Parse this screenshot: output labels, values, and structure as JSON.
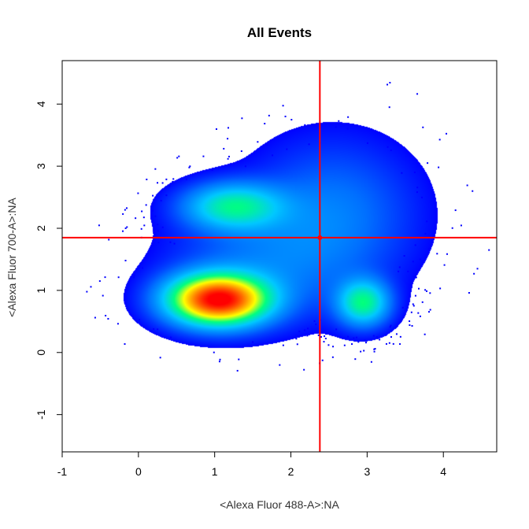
{
  "chart_data": {
    "type": "scatter",
    "subtype": "density-scatter",
    "title": "All Events",
    "xlabel": "<Alexa Fluor 488-A>:NA",
    "ylabel": "<Alexa Fluor 700-A>:NA",
    "xlim": [
      -1.0,
      4.7
    ],
    "ylim": [
      -1.6,
      4.7
    ],
    "x_ticks": [
      -1,
      0,
      1,
      2,
      3,
      4
    ],
    "y_ticks": [
      -1,
      0,
      1,
      2,
      3,
      4
    ],
    "grid": false,
    "legend": "none",
    "gate": {
      "x": 2.38,
      "y": 1.85,
      "color": "#ff0000"
    },
    "populations": [
      {
        "x": 1.05,
        "y": 0.85,
        "sx": 0.42,
        "sy": 0.26,
        "weight": 1.0
      },
      {
        "x": 1.25,
        "y": 2.35,
        "sx": 0.42,
        "sy": 0.24,
        "weight": 0.35
      },
      {
        "x": 2.95,
        "y": 0.8,
        "sx": 0.22,
        "sy": 0.24,
        "weight": 0.38
      },
      {
        "x": 2.55,
        "y": 2.25,
        "sx": 0.7,
        "sy": 0.75,
        "weight": 0.12
      },
      {
        "x": 1.6,
        "y": 1.4,
        "sx": 0.8,
        "sy": 0.6,
        "weight": 0.1
      }
    ],
    "density_colors": [
      "#0000ff",
      "#0070ff",
      "#00c8ff",
      "#00ff80",
      "#ffff00",
      "#ff8000",
      "#ff0000"
    ],
    "point_color": "#0000ff"
  }
}
